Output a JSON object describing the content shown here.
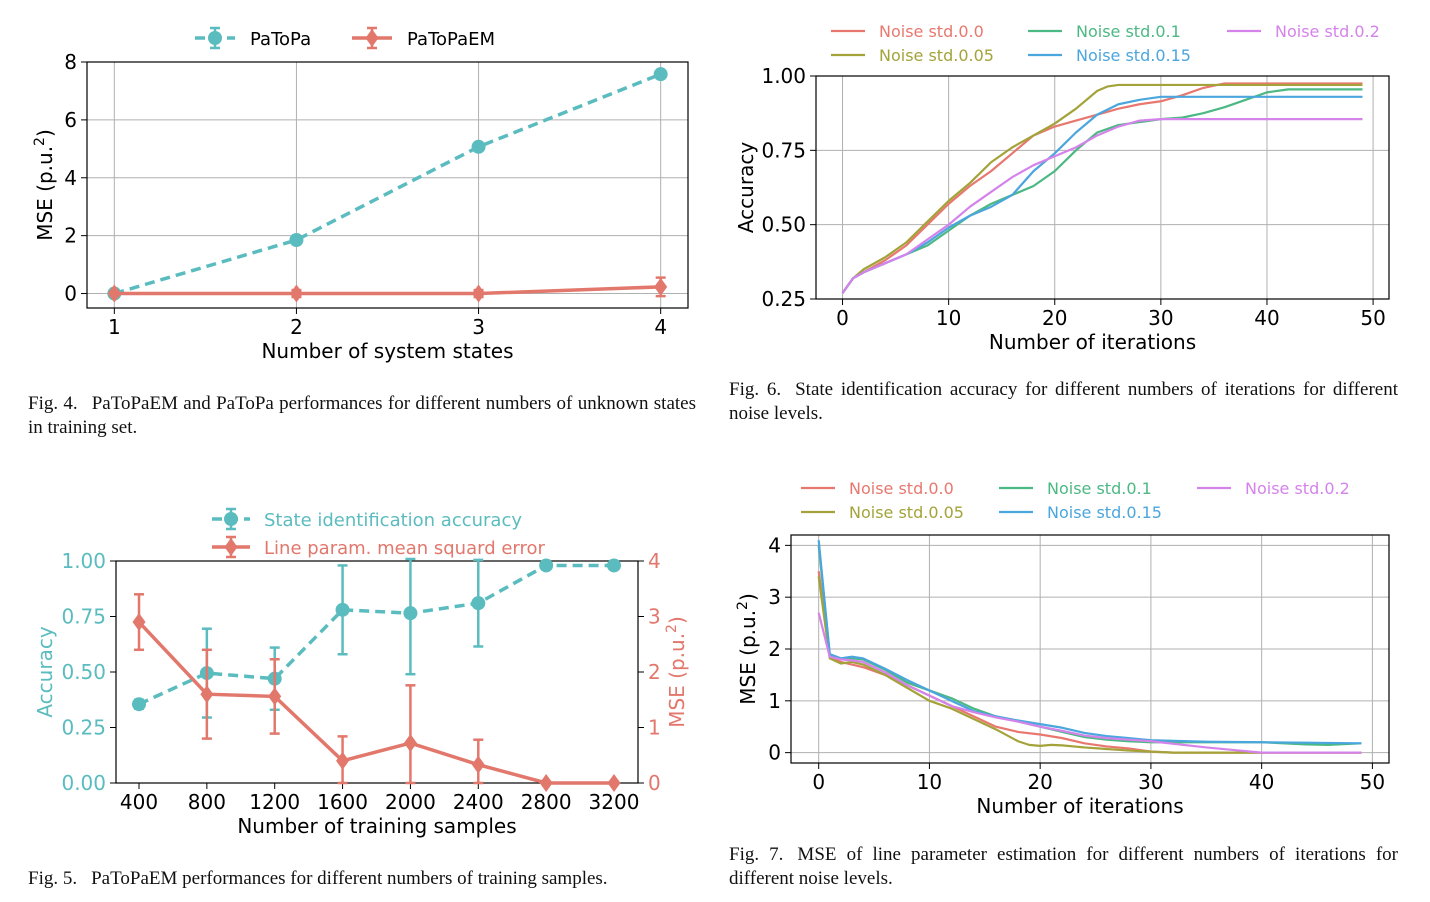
{
  "colors": {
    "teal": "#5bbcbf",
    "salmon": "#e2776c",
    "ns0": "#e8786f",
    "ns005": "#a3a33a",
    "ns01": "#4cb883",
    "ns015": "#4ba6dd",
    "ns02": "#d483ea",
    "grid": "#b0b0b0"
  },
  "captions": {
    "fig4": {
      "num": "Fig. 4.",
      "text": "PaToPaEM and PaToPa performances for different numbers of unknown states in training set."
    },
    "fig5": {
      "num": "Fig. 5.",
      "text": "PaToPaEM performances for different numbers of training samples."
    },
    "fig6": {
      "num": "Fig. 6.",
      "text": "State identification accuracy for different numbers of iterations for different noise levels."
    },
    "fig7": {
      "num": "Fig. 7.",
      "text": "MSE of line parameter estimation for different numbers of iterations for different noise levels."
    }
  },
  "chart_data": [
    {
      "id": "fig4",
      "type": "line",
      "xlabel": "Number of system states",
      "ylabel": "MSE (p.u.²)",
      "ylabel_main": "MSE (p.u.",
      "ylabel_sup": "2",
      "ylabel_end": ")",
      "xlim": [
        0.85,
        4.15
      ],
      "ylim": [
        -0.5,
        8
      ],
      "xticks": [
        1,
        2,
        3,
        4
      ],
      "yticks": [
        0,
        2,
        4,
        6,
        8
      ],
      "grid": true,
      "legend_placement": "top-center",
      "series": [
        {
          "name": "PaToPa",
          "color": "teal",
          "dashed": true,
          "marker": "circle",
          "x": [
            1,
            2,
            3,
            4
          ],
          "y": [
            0.0,
            1.85,
            5.07,
            7.58
          ],
          "err": [
            0,
            0,
            0,
            0
          ]
        },
        {
          "name": "PaToPaEM",
          "color": "salmon",
          "dashed": false,
          "marker": "diamond",
          "x": [
            1,
            2,
            3,
            4
          ],
          "y": [
            0.0,
            0.0,
            0.0,
            0.23
          ],
          "err": [
            0.08,
            0.12,
            0.12,
            0.32
          ]
        }
      ]
    },
    {
      "id": "fig5",
      "type": "line",
      "xlabel": "Number of training samples",
      "ylabel": "Accuracy",
      "ylabel_right": "MSE (p.u.²)",
      "ylabel_right_main": "MSE (p.u.",
      "ylabel_right_sup": "2",
      "ylabel_right_end": ")",
      "categories": [
        "400",
        "800",
        "1200",
        "1600",
        "2000",
        "2400",
        "2800",
        "3200"
      ],
      "ylim": [
        0,
        1
      ],
      "ylim_right": [
        0,
        4
      ],
      "yticks": [
        "0.00",
        "0.25",
        "0.50",
        "0.75",
        "1.00"
      ],
      "yticks_right": [
        "0",
        "1",
        "2",
        "3",
        "4"
      ],
      "grid": false,
      "legend_placement": "top-center",
      "series": [
        {
          "name": "State identification accuracy",
          "axis": "left",
          "color": "teal",
          "dashed": true,
          "marker": "circle",
          "values": [
            0.355,
            0.495,
            0.47,
            0.78,
            0.765,
            0.81,
            0.98,
            0.98
          ],
          "err": [
            0.02,
            0.2,
            0.14,
            0.2,
            0.275,
            0.195,
            0.0,
            0.0
          ]
        },
        {
          "name": "Line param. mean squard error",
          "axis": "right",
          "color": "salmon",
          "dashed": false,
          "marker": "diamond",
          "values": [
            2.9,
            1.6,
            1.56,
            0.4,
            0.72,
            0.33,
            0.0,
            0.0
          ],
          "err": [
            0.5,
            0.8,
            0.67,
            0.44,
            1.04,
            0.45,
            0.02,
            0.02
          ]
        }
      ]
    },
    {
      "id": "fig6",
      "type": "line",
      "xlabel": "Number of iterations",
      "ylabel": "Accuracy",
      "xlim": [
        -2.5,
        51.5
      ],
      "ylim": [
        0.25,
        1.0
      ],
      "xticks": [
        0,
        10,
        20,
        30,
        40,
        50
      ],
      "yticks": [
        "0.25",
        "0.50",
        "0.75",
        "1.00"
      ],
      "grid": true,
      "legend_placement": "top",
      "series": [
        {
          "name": "Noise std.0.0",
          "color": "ns0",
          "x": [
            0,
            1,
            2,
            4,
            6,
            8,
            10,
            12,
            14,
            16,
            18,
            20,
            22,
            24,
            26,
            28,
            30,
            32,
            34,
            36,
            38,
            40,
            49
          ],
          "y": [
            0.27,
            0.32,
            0.34,
            0.38,
            0.43,
            0.5,
            0.57,
            0.63,
            0.68,
            0.74,
            0.8,
            0.83,
            0.85,
            0.87,
            0.89,
            0.905,
            0.915,
            0.935,
            0.96,
            0.975,
            0.975,
            0.975,
            0.975
          ]
        },
        {
          "name": "Noise std.0.05",
          "color": "ns005",
          "x": [
            0,
            1,
            2,
            4,
            6,
            8,
            10,
            12,
            14,
            16,
            18,
            20,
            22,
            24,
            25,
            26,
            28,
            30,
            49
          ],
          "y": [
            0.27,
            0.32,
            0.35,
            0.39,
            0.44,
            0.51,
            0.58,
            0.64,
            0.71,
            0.76,
            0.8,
            0.84,
            0.89,
            0.95,
            0.965,
            0.97,
            0.97,
            0.97,
            0.97
          ]
        },
        {
          "name": "Noise std.0.1",
          "color": "ns01",
          "x": [
            0,
            1,
            2,
            4,
            6,
            8,
            10,
            12,
            14,
            16,
            18,
            20,
            22,
            24,
            26,
            28,
            30,
            32,
            34,
            36,
            38,
            40,
            42,
            49
          ],
          "y": [
            0.27,
            0.32,
            0.34,
            0.37,
            0.4,
            0.43,
            0.48,
            0.53,
            0.57,
            0.6,
            0.63,
            0.68,
            0.75,
            0.81,
            0.835,
            0.845,
            0.855,
            0.86,
            0.875,
            0.895,
            0.92,
            0.945,
            0.955,
            0.955
          ]
        },
        {
          "name": "Noise std.0.15",
          "color": "ns015",
          "x": [
            0,
            1,
            2,
            4,
            6,
            8,
            10,
            12,
            14,
            16,
            18,
            20,
            22,
            24,
            26,
            28,
            30,
            32,
            49
          ],
          "y": [
            0.27,
            0.32,
            0.34,
            0.37,
            0.4,
            0.44,
            0.49,
            0.53,
            0.56,
            0.6,
            0.68,
            0.74,
            0.81,
            0.87,
            0.905,
            0.92,
            0.93,
            0.93,
            0.93
          ]
        },
        {
          "name": "Noise std.0.2",
          "color": "ns02",
          "x": [
            0,
            1,
            2,
            4,
            6,
            8,
            10,
            12,
            14,
            16,
            18,
            20,
            22,
            24,
            26,
            28,
            30,
            32,
            49
          ],
          "y": [
            0.27,
            0.32,
            0.34,
            0.37,
            0.4,
            0.45,
            0.5,
            0.56,
            0.61,
            0.66,
            0.7,
            0.73,
            0.76,
            0.8,
            0.83,
            0.85,
            0.855,
            0.855,
            0.855
          ]
        }
      ]
    },
    {
      "id": "fig7",
      "type": "line",
      "xlabel": "Number of iterations",
      "ylabel": "MSE (p.u.²)",
      "ylabel_main": "MSE (p.u.",
      "ylabel_sup": "2",
      "ylabel_end": ")",
      "xlim": [
        -2.5,
        51.5
      ],
      "ylim": [
        -0.2,
        4.2
      ],
      "xticks": [
        0,
        10,
        20,
        30,
        40,
        50
      ],
      "yticks": [
        0,
        1,
        2,
        3,
        4
      ],
      "grid": true,
      "legend_placement": "top",
      "series": [
        {
          "name": "Noise std.0.0",
          "color": "ns0",
          "x": [
            0,
            1,
            2,
            3,
            4,
            6,
            8,
            10,
            12,
            14,
            16,
            18,
            20,
            22,
            24,
            26,
            28,
            30,
            32,
            35,
            40,
            49
          ],
          "y": [
            3.5,
            1.85,
            1.75,
            1.7,
            1.65,
            1.5,
            1.3,
            1.1,
            0.9,
            0.7,
            0.5,
            0.4,
            0.35,
            0.28,
            0.18,
            0.12,
            0.08,
            0.02,
            0.0,
            0.0,
            0.0,
            0.0
          ]
        },
        {
          "name": "Noise std.0.05",
          "color": "ns005",
          "x": [
            0,
            1,
            2,
            3,
            4,
            6,
            8,
            10,
            12,
            14,
            16,
            18,
            19,
            20,
            21,
            22,
            24,
            26,
            28,
            30,
            32,
            40,
            49
          ],
          "y": [
            3.4,
            1.82,
            1.72,
            1.75,
            1.7,
            1.5,
            1.25,
            1.0,
            0.85,
            0.65,
            0.45,
            0.22,
            0.15,
            0.13,
            0.15,
            0.14,
            0.1,
            0.07,
            0.04,
            0.02,
            0.0,
            0.0,
            0.0
          ]
        },
        {
          "name": "Noise std.0.1",
          "color": "ns01",
          "x": [
            0,
            1,
            2,
            3,
            4,
            6,
            8,
            10,
            12,
            14,
            16,
            18,
            20,
            22,
            24,
            26,
            28,
            30,
            35,
            40,
            44,
            46,
            49
          ],
          "y": [
            4.0,
            1.9,
            1.8,
            1.82,
            1.8,
            1.6,
            1.35,
            1.2,
            1.05,
            0.85,
            0.7,
            0.6,
            0.5,
            0.4,
            0.3,
            0.25,
            0.22,
            0.2,
            0.2,
            0.2,
            0.16,
            0.15,
            0.18
          ]
        },
        {
          "name": "Noise std.0.15",
          "color": "ns015",
          "x": [
            0,
            1,
            2,
            3,
            4,
            6,
            8,
            10,
            12,
            14,
            16,
            18,
            20,
            22,
            24,
            26,
            28,
            30,
            35,
            40,
            45,
            49
          ],
          "y": [
            4.1,
            1.9,
            1.82,
            1.85,
            1.82,
            1.62,
            1.4,
            1.2,
            1.0,
            0.8,
            0.7,
            0.62,
            0.55,
            0.48,
            0.38,
            0.32,
            0.28,
            0.24,
            0.21,
            0.2,
            0.19,
            0.18
          ]
        },
        {
          "name": "Noise std.0.2",
          "color": "ns02",
          "x": [
            0,
            1,
            2,
            3,
            4,
            6,
            8,
            10,
            12,
            14,
            16,
            18,
            20,
            22,
            24,
            26,
            28,
            30,
            35,
            38,
            40,
            49
          ],
          "y": [
            2.7,
            1.85,
            1.8,
            1.78,
            1.75,
            1.55,
            1.3,
            1.1,
            0.9,
            0.78,
            0.68,
            0.6,
            0.5,
            0.42,
            0.33,
            0.28,
            0.25,
            0.22,
            0.1,
            0.04,
            0.0,
            0.0
          ]
        }
      ]
    }
  ]
}
